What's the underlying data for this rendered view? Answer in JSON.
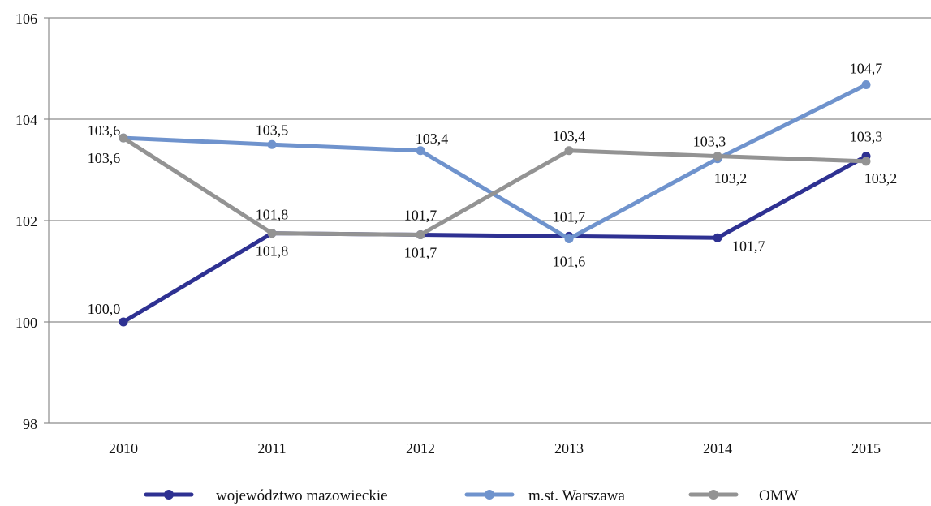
{
  "chart_data": {
    "type": "line",
    "categories": [
      "2010",
      "2011",
      "2012",
      "2013",
      "2014",
      "2015"
    ],
    "ylim": [
      98,
      106
    ],
    "yticks": [
      98,
      100,
      102,
      104,
      106
    ],
    "grid": true,
    "legend_position": "bottom",
    "series": [
      {
        "name": "województwo mazowieckie",
        "color": "#2e3192",
        "values": [
          100.0,
          101.75,
          101.72,
          101.69,
          101.66,
          103.27
        ],
        "labels": [
          "100,0",
          "101,8",
          "101,7",
          "101,7",
          "101,7",
          "103,3"
        ]
      },
      {
        "name": "m.st. Warszawa",
        "color": "#6f93cd",
        "values": [
          103.63,
          103.5,
          103.38,
          101.64,
          103.22,
          104.68
        ],
        "labels": [
          "103,6",
          "103,5",
          "103,4",
          "101,6",
          "103,2",
          "104,7"
        ]
      },
      {
        "name": "OMW",
        "color": "#939393",
        "values": [
          103.63,
          101.75,
          101.72,
          103.38,
          103.27,
          103.17
        ],
        "labels": [
          "103,6",
          "101,8",
          "101,7",
          "103,4",
          "103,3",
          "103,2"
        ]
      }
    ]
  }
}
